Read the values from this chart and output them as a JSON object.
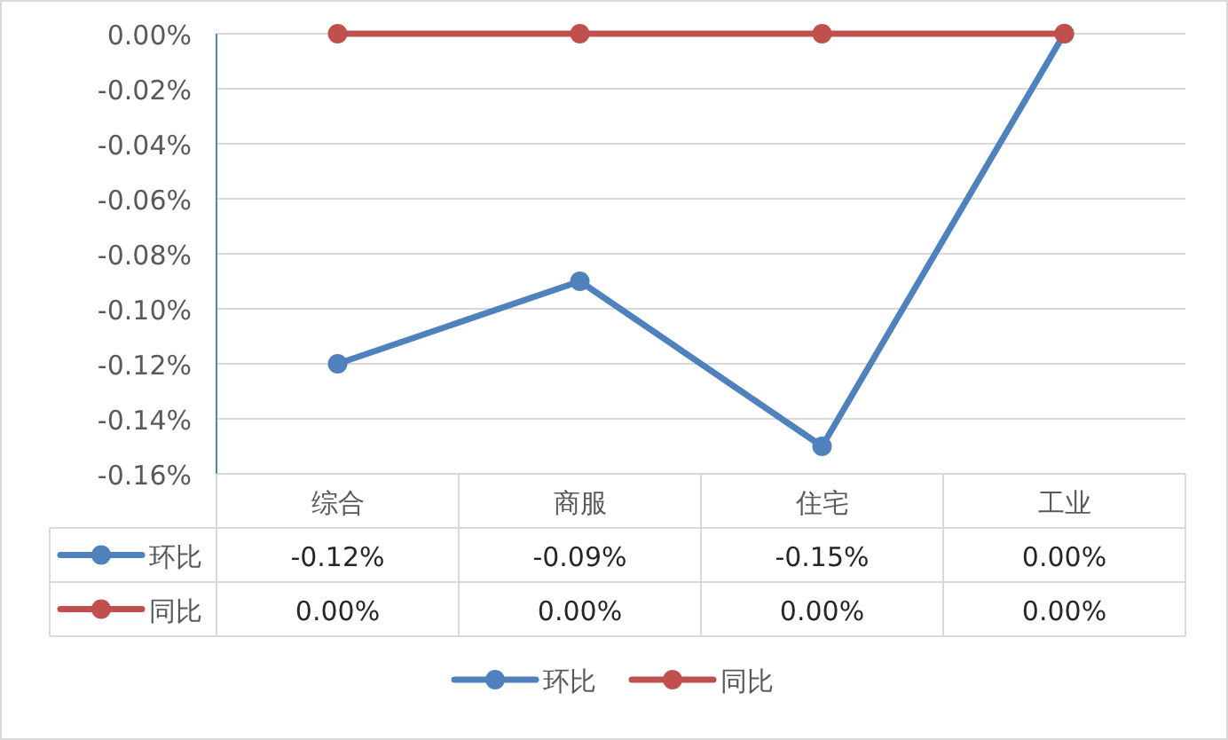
{
  "chart_data": {
    "type": "line",
    "categories": [
      "综合",
      "商服",
      "住宅",
      "工业"
    ],
    "series": [
      {
        "name": "环比",
        "color": "#4f81bd",
        "values": [
          -0.12,
          -0.09,
          -0.15,
          0.0
        ],
        "value_labels": [
          "-0.12%",
          "-0.09%",
          "-0.15%",
          "0.00%"
        ]
      },
      {
        "name": "同比",
        "color": "#c0504d",
        "values": [
          0.0,
          0.0,
          0.0,
          0.0
        ],
        "value_labels": [
          "0.00%",
          "0.00%",
          "0.00%",
          "0.00%"
        ]
      }
    ],
    "ylim": [
      -0.16,
      0
    ],
    "yticks": [
      {
        "value": 0,
        "label": "0.00%"
      },
      {
        "value": -0.02,
        "label": "-0.02%"
      },
      {
        "value": -0.04,
        "label": "-0.04%"
      },
      {
        "value": -0.06,
        "label": "-0.06%"
      },
      {
        "value": -0.08,
        "label": "-0.08%"
      },
      {
        "value": -0.1,
        "label": "-0.10%"
      },
      {
        "value": -0.12,
        "label": "-0.12%"
      },
      {
        "value": -0.14,
        "label": "-0.14%"
      },
      {
        "value": -0.16,
        "label": "-0.16%"
      }
    ],
    "grid": "y",
    "legend": "bottom",
    "marker": "circle",
    "line_style": "solid"
  }
}
